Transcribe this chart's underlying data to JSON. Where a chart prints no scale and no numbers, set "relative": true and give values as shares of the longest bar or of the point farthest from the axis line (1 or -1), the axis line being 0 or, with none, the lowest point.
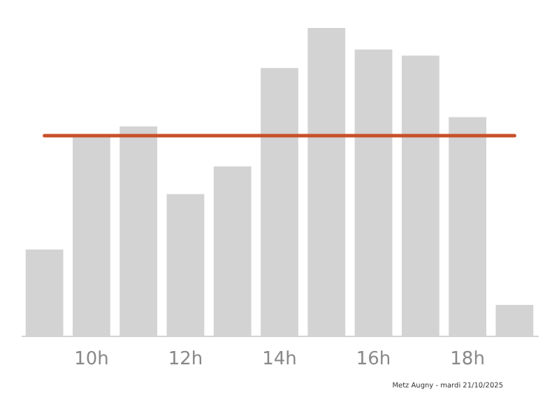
{
  "chart_data": {
    "type": "bar",
    "relative": true,
    "color": "#d3d3d3",
    "categories": [
      null,
      "10h",
      null,
      "12h",
      null,
      "14h",
      null,
      "16h",
      null,
      "18h",
      null
    ],
    "values": [
      0.28,
      0.65,
      0.68,
      0.46,
      0.55,
      0.87,
      1,
      0.93,
      0.91,
      0.71,
      0.1
    ],
    "ref_lines": [
      {
        "axis": "y",
        "value": 0.65,
        "color": "#c8502a"
      }
    ],
    "annotations": [
      "Metz Augny - mardi 21/10/2025"
    ]
  }
}
